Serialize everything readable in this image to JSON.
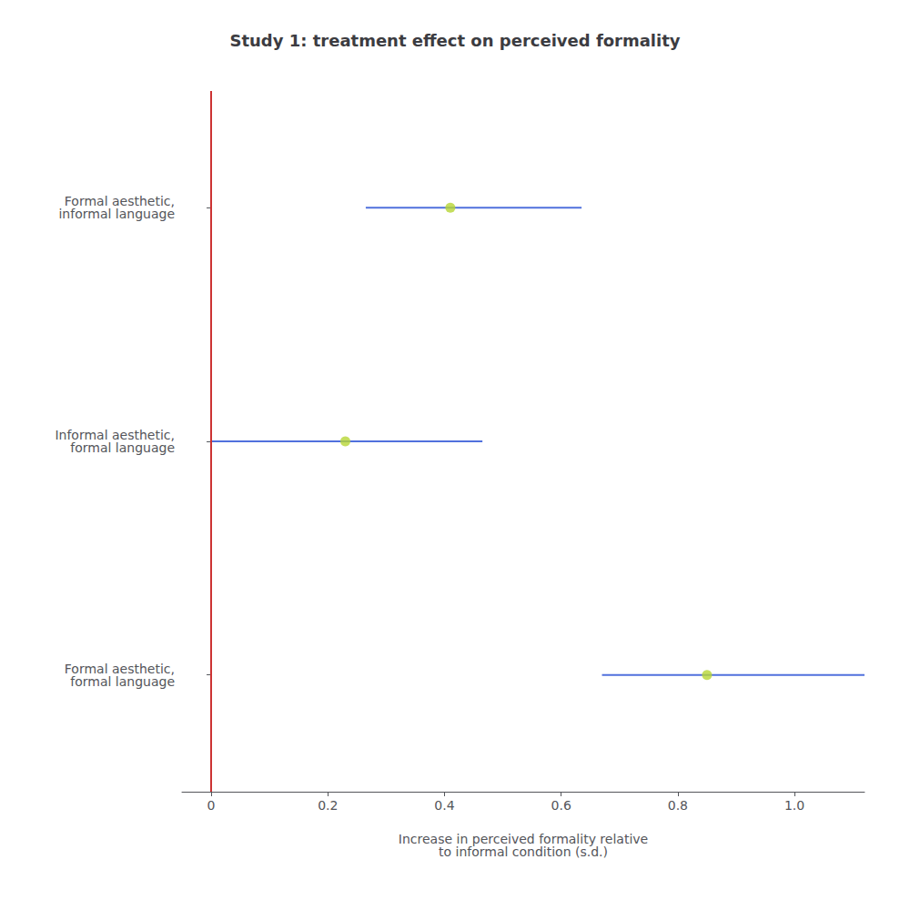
{
  "chart_data": {
    "type": "scatter",
    "orientation": "horizontal",
    "title": "Study 1: treatment effect on perceived formality",
    "xlabel": "Increase in perceived formality relative\nto informal condition (s.d.)",
    "categories": [
      "Formal aesthetic,\ninformal language",
      "Informal aesthetic,\nformal language",
      "Formal aesthetic,\nformal language"
    ],
    "values": [
      0.41,
      0.23,
      0.85
    ],
    "ci_low": [
      0.265,
      0.0,
      0.67
    ],
    "ci_high": [
      0.635,
      0.465,
      1.12
    ],
    "xlim": [
      -0.05,
      1.12
    ],
    "xticks": [
      0,
      0.2,
      0.4,
      0.6,
      0.8,
      {
        "value": 1.0,
        "label": "1.0"
      }
    ],
    "reference_line": {
      "x": 0,
      "color": "#cc3333"
    },
    "grid": false
  }
}
